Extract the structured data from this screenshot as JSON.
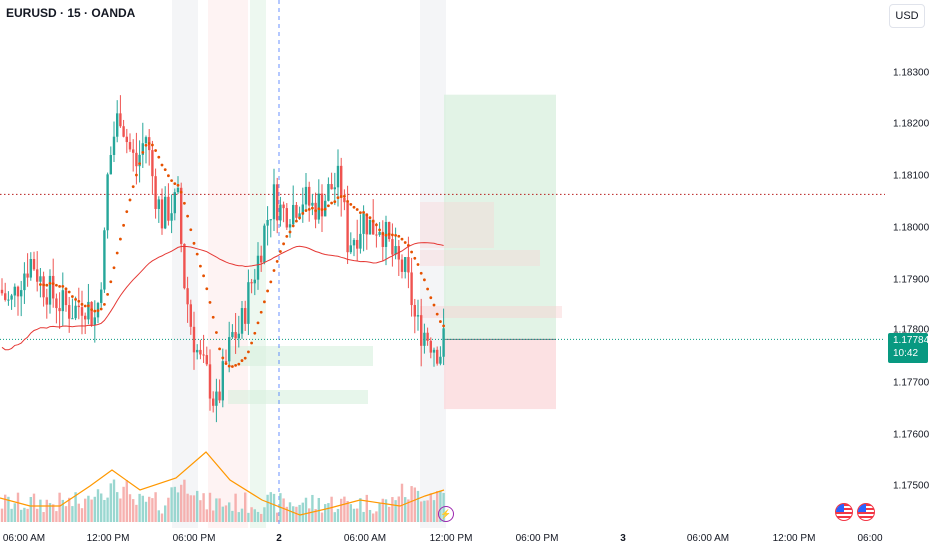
{
  "header": {
    "symbol_title": "EURUSD · 15 · OANDA"
  },
  "toolbar": {
    "currency_label": "USD"
  },
  "price_axis": {
    "labels": [
      "1.18300",
      "1.18200",
      "1.18100",
      "1.18000",
      "1.17900",
      "1.17800",
      "1.17700",
      "1.17600",
      "1.17500"
    ],
    "current_price": "1.17784",
    "countdown": "10:42"
  },
  "time_axis": {
    "labels": [
      {
        "text": "06:00 AM",
        "bold": false
      },
      {
        "text": "12:00 PM",
        "bold": false
      },
      {
        "text": "06:00 PM",
        "bold": false
      },
      {
        "text": "2",
        "bold": true
      },
      {
        "text": "06:00 AM",
        "bold": false
      },
      {
        "text": "12:00 PM",
        "bold": false
      },
      {
        "text": "06:00 PM",
        "bold": false
      },
      {
        "text": "3",
        "bold": true
      },
      {
        "text": "06:00 AM",
        "bold": false
      },
      {
        "text": "12:00 PM",
        "bold": false
      },
      {
        "text": "06:00",
        "bold": false
      }
    ]
  },
  "icons": {
    "flash": "lightning-icon",
    "events": [
      "us-flag-icon",
      "us-flag-icon"
    ]
  },
  "colors": {
    "up": "#26a69a",
    "down": "#ef5350",
    "ma_dotted": "#e65100",
    "ma_line": "#e53935",
    "volume_ma": "#ff9800",
    "current_price_bg": "#089981",
    "resistance_line": "#b71c1c"
  },
  "chart_data": {
    "type": "candlestick",
    "symbol": "EURUSD",
    "interval": "15",
    "ylim": [
      1.1745,
      1.1838
    ],
    "current_price": 1.17784,
    "resistance_level": 1.18065,
    "overlays": [
      "dotted moving average",
      "line moving average",
      "volume",
      "volume moving average"
    ],
    "long_position": {
      "target": 1.18258,
      "entry": 1.17784,
      "stop": 1.17649
    },
    "price_path": [
      [
        0,
        1.1788
      ],
      [
        10,
        1.1785
      ],
      [
        22,
        1.1791
      ],
      [
        32,
        1.1794
      ],
      [
        40,
        1.179
      ],
      [
        52,
        1.1787
      ],
      [
        62,
        1.1785
      ],
      [
        74,
        1.1784
      ],
      [
        84,
        1.1786
      ],
      [
        96,
        1.1782
      ],
      [
        104,
        1.1796
      ],
      [
        108,
        1.1811
      ],
      [
        114,
        1.1818
      ],
      [
        120,
        1.1823
      ],
      [
        128,
        1.1816
      ],
      [
        136,
        1.1812
      ],
      [
        146,
        1.1818
      ],
      [
        154,
        1.1808
      ],
      [
        162,
        1.1802
      ],
      [
        170,
        1.1804
      ],
      [
        178,
        1.1805
      ],
      [
        184,
        1.179
      ],
      [
        192,
        1.178
      ],
      [
        200,
        1.1774
      ],
      [
        208,
        1.1771
      ],
      [
        216,
        1.1765
      ],
      [
        224,
        1.1772
      ],
      [
        232,
        1.1779
      ],
      [
        240,
        1.178
      ],
      [
        248,
        1.1787
      ],
      [
        258,
        1.1794
      ],
      [
        266,
        1.1801
      ],
      [
        274,
        1.1806
      ],
      [
        282,
        1.1803
      ],
      [
        292,
        1.1804
      ],
      [
        302,
        1.1806
      ],
      [
        312,
        1.1804
      ],
      [
        322,
        1.1805
      ],
      [
        332,
        1.1808
      ],
      [
        340,
        1.1809
      ],
      [
        348,
        1.1797
      ],
      [
        356,
        1.1799
      ],
      [
        364,
        1.1802
      ],
      [
        372,
        1.18
      ],
      [
        380,
        1.1801
      ],
      [
        388,
        1.1797
      ],
      [
        396,
        1.1793
      ],
      [
        404,
        1.1792
      ],
      [
        410,
        1.1788
      ],
      [
        416,
        1.1781
      ],
      [
        424,
        1.178
      ],
      [
        432,
        1.1778
      ],
      [
        440,
        1.1776
      ],
      [
        444,
        1.17784
      ]
    ]
  }
}
